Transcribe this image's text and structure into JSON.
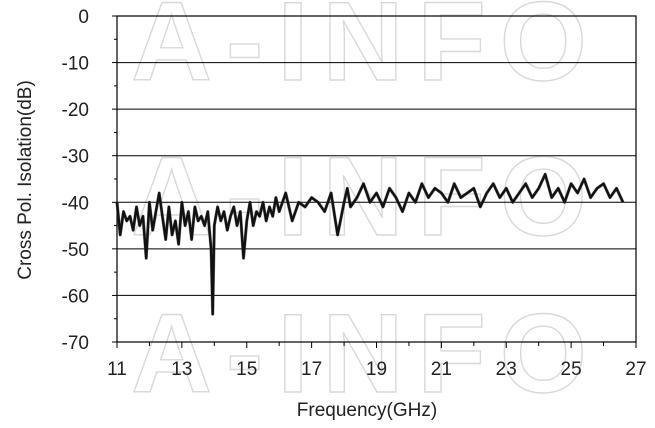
{
  "chart_data": {
    "type": "line",
    "xlabel": "Frequency(GHz)",
    "ylabel": "Cross Pol. Isolation(dB)",
    "xlim": [
      11,
      26.7
    ],
    "ylim": [
      -70,
      0
    ],
    "xticks": [
      11,
      13,
      15,
      17,
      19,
      21,
      23,
      25,
      27
    ],
    "yticks": [
      0,
      -10,
      -20,
      -30,
      -40,
      -50,
      -60,
      -70
    ],
    "xtick_labels": [
      "11",
      "13",
      "15",
      "17",
      "19",
      "21",
      "23",
      "25",
      "27"
    ],
    "ytick_labels": [
      "0",
      "-10",
      "-20",
      "-30",
      "-40",
      "-50",
      "-60",
      "-70"
    ],
    "grid": "horizontal",
    "watermark": "A-INFO",
    "colors": {
      "line": "#111111",
      "line_shadow": "#444444",
      "grid": "#000000"
    },
    "series": [
      {
        "x": [
          11.0,
          11.1,
          11.2,
          11.3,
          11.4,
          11.5,
          11.6,
          11.7,
          11.8,
          11.9,
          12.0,
          12.1,
          12.2,
          12.3,
          12.4,
          12.5,
          12.6,
          12.7,
          12.8,
          12.9,
          13.0,
          13.1,
          13.2,
          13.3,
          13.4,
          13.5,
          13.6,
          13.7,
          13.8,
          13.9,
          13.95,
          14.0,
          14.05,
          14.1,
          14.2,
          14.3,
          14.4,
          14.5,
          14.6,
          14.7,
          14.8,
          14.9,
          15.0,
          15.1,
          15.2,
          15.3,
          15.4,
          15.5,
          15.6,
          15.7,
          15.8,
          15.9,
          16.0,
          16.2,
          16.4,
          16.6,
          16.8,
          17.0,
          17.2,
          17.4,
          17.6,
          17.8,
          18.0,
          18.1,
          18.2,
          18.4,
          18.6,
          18.8,
          19.0,
          19.2,
          19.4,
          19.6,
          19.8,
          20.0,
          20.2,
          20.4,
          20.6,
          20.8,
          21.0,
          21.2,
          21.4,
          21.6,
          21.8,
          22.0,
          22.2,
          22.4,
          22.6,
          22.8,
          23.0,
          23.2,
          23.4,
          23.6,
          23.8,
          24.0,
          24.2,
          24.4,
          24.6,
          24.8,
          25.0,
          25.2,
          25.4,
          25.6,
          25.8,
          26.0,
          26.2,
          26.4,
          26.6
        ],
        "y": [
          -40,
          -47,
          -42,
          -44,
          -43,
          -46,
          -41,
          -45,
          -43,
          -52,
          -40,
          -46,
          -42,
          -38,
          -43,
          -48,
          -41,
          -47,
          -44,
          -49,
          -40,
          -45,
          -42,
          -48,
          -41,
          -44,
          -43,
          -45,
          -42,
          -50,
          -64,
          -45,
          -43,
          -41,
          -44,
          -42,
          -46,
          -43,
          -41,
          -45,
          -42,
          -52,
          -44,
          -40,
          -45,
          -42,
          -43,
          -40,
          -44,
          -41,
          -43,
          -39,
          -42,
          -38,
          -44,
          -40,
          -41,
          -39,
          -40,
          -42,
          -38,
          -47,
          -40,
          -37,
          -41,
          -39,
          -36,
          -40,
          -38,
          -41,
          -37,
          -39,
          -42,
          -38,
          -40,
          -36,
          -39,
          -37,
          -38,
          -40,
          -36,
          -39,
          -38,
          -37,
          -41,
          -38,
          -36,
          -39,
          -37,
          -40,
          -38,
          -36,
          -39,
          -37,
          -34,
          -39,
          -37,
          -40,
          -36,
          -38,
          -35,
          -39,
          -37,
          -36,
          -39,
          -37,
          -40
        ]
      }
    ]
  }
}
